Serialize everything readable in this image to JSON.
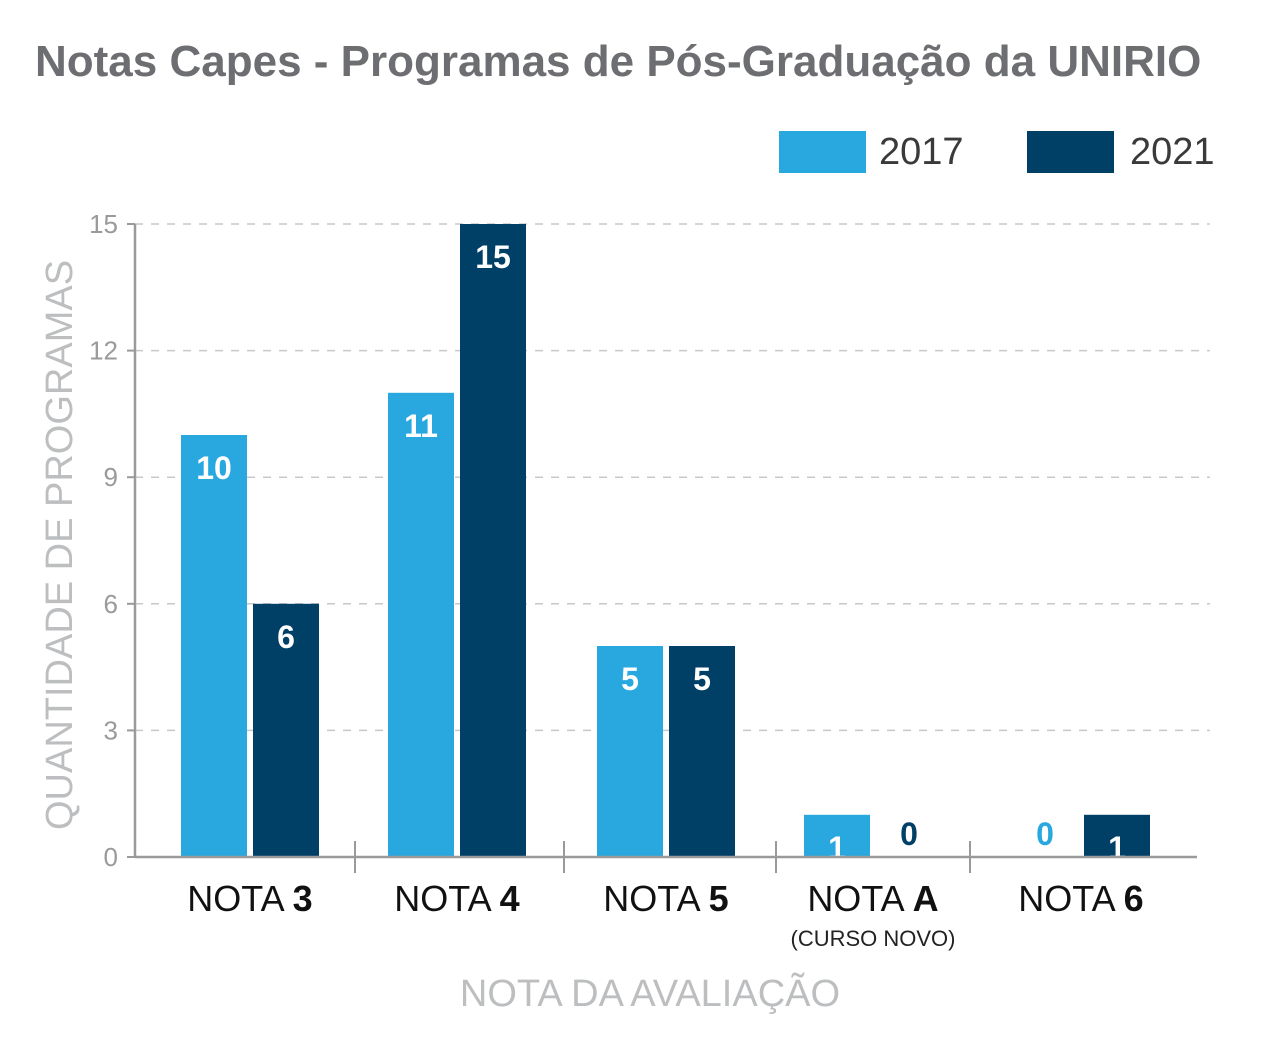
{
  "colors": {
    "s2017": "#29a8e0",
    "s2021": "#003f66",
    "grid": "#c8c8c8",
    "axis": "#9a9a9a"
  },
  "chart_data": {
    "type": "bar",
    "title": "Notas Capes - Programas de Pós-Graduação da UNIRIO",
    "xlabel": "NOTA DA AVALIAÇÃO",
    "ylabel": "QUANTIDADE DE PROGRAMAS",
    "ylim": [
      0,
      15
    ],
    "yticks": [
      "0",
      "3",
      "6",
      "9",
      "12",
      "15"
    ],
    "grid": true,
    "legend": "top-right",
    "categories": [
      {
        "prefix": "NOTA ",
        "bold": "3",
        "sub": ""
      },
      {
        "prefix": "NOTA ",
        "bold": "4",
        "sub": ""
      },
      {
        "prefix": "NOTA ",
        "bold": "5",
        "sub": ""
      },
      {
        "prefix": "NOTA ",
        "bold": "A",
        "sub": "(CURSO NOVO)"
      },
      {
        "prefix": "NOTA ",
        "bold": "6",
        "sub": ""
      }
    ],
    "series": [
      {
        "name": "2017",
        "values": [
          10,
          11,
          5,
          1,
          0
        ]
      },
      {
        "name": "2021",
        "values": [
          6,
          15,
          5,
          0,
          1
        ]
      }
    ]
  }
}
